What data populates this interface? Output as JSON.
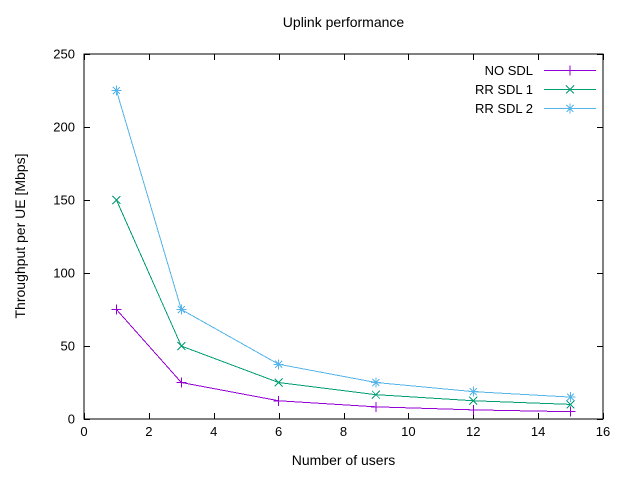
{
  "chart_data": {
    "type": "line",
    "title": "Uplink performance",
    "xlabel": "Number of users",
    "ylabel": "Throughput per UE [Mbps]",
    "x": [
      1,
      3,
      6,
      9,
      12,
      15
    ],
    "series": [
      {
        "name": "NO SDL",
        "color": "#9400d3",
        "marker": "plus",
        "values": [
          75,
          25,
          12.5,
          8.33,
          6.25,
          5
        ]
      },
      {
        "name": "RR SDL 1",
        "color": "#009e73",
        "marker": "cross",
        "values": [
          150,
          50,
          25,
          16.67,
          12.5,
          10
        ]
      },
      {
        "name": "RR SDL 2",
        "color": "#56b4e9",
        "marker": "asterisk",
        "values": [
          225,
          75,
          37.5,
          25,
          18.75,
          15
        ]
      }
    ],
    "xlim": [
      0,
      16
    ],
    "ylim": [
      0,
      250
    ],
    "xticks": [
      0,
      2,
      4,
      6,
      8,
      10,
      12,
      14,
      16
    ],
    "yticks": [
      0,
      50,
      100,
      150,
      200,
      250
    ],
    "grid": false,
    "legend_position": "top-right",
    "border_color": "#000000",
    "text_color": "#000000",
    "background_color": "#ffffff"
  }
}
